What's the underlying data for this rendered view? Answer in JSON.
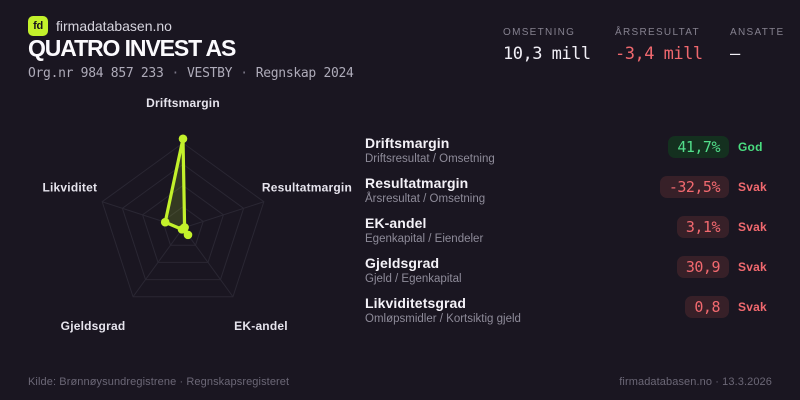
{
  "brand": {
    "logo": "fd",
    "site": "firmadatabasen.no"
  },
  "company": {
    "name": "QUATRO INVEST AS",
    "org": "Org.nr 984 857 233",
    "location": "VESTBY",
    "report": "Regnskap 2024",
    "sep": "·"
  },
  "stats": [
    {
      "label": "OMSETNING",
      "value": "10,3 mill",
      "tone": "neutral"
    },
    {
      "label": "ÅRSRESULTAT",
      "value": "-3,4 mill",
      "tone": "negative"
    },
    {
      "label": "ANSATTE",
      "value": "–",
      "tone": "neutral"
    }
  ],
  "chart_data": {
    "type": "radar",
    "axes": [
      "Driftsmargin",
      "Resultatmargin",
      "EK-andel",
      "Gjeldsgrad",
      "Likviditet"
    ],
    "values": [
      41.7,
      -32.5,
      3.1,
      30.9,
      0.8
    ],
    "values_display": [
      "41,7%",
      "-32,5%",
      "3,1%",
      "30,9",
      "0,8"
    ],
    "values_norm": [
      1.05,
      0.02,
      0.1,
      0.02,
      0.22
    ],
    "rings": [
      0.25,
      0.5,
      0.75,
      1
    ],
    "grid": true,
    "legend": false,
    "line_color": "#c3f12b",
    "fill_opacity": 0.16
  },
  "metrics": [
    {
      "title": "Driftsmargin",
      "formula": "Driftsresultat / Omsetning",
      "value": "41,7%",
      "rating": "God",
      "tone": "good"
    },
    {
      "title": "Resultatmargin",
      "formula": "Årsresultat / Omsetning",
      "value": "-32,5%",
      "rating": "Svak",
      "tone": "bad"
    },
    {
      "title": "EK-andel",
      "formula": "Egenkapital / Eiendeler",
      "value": "3,1%",
      "rating": "Svak",
      "tone": "bad"
    },
    {
      "title": "Gjeldsgrad",
      "formula": "Gjeld / Egenkapital",
      "value": "30,9",
      "rating": "Svak",
      "tone": "bad"
    },
    {
      "title": "Likviditetsgrad",
      "formula": "Omløpsmidler / Kortsiktig gjeld",
      "value": "0,8",
      "rating": "Svak",
      "tone": "bad"
    }
  ],
  "footer": {
    "source": "Kilde: Brønnøysundregistrene · Regnskapsregisteret",
    "site": "firmadatabasen.no · 13.3.2026"
  },
  "colors": {
    "background": "#1a1621",
    "accent": "#c3f12b",
    "positive": "#4ade80",
    "negative": "#ef686e",
    "grid": "#2a2733",
    "pill_good_bg": "#14301f",
    "pill_bad_bg": "#372028"
  }
}
